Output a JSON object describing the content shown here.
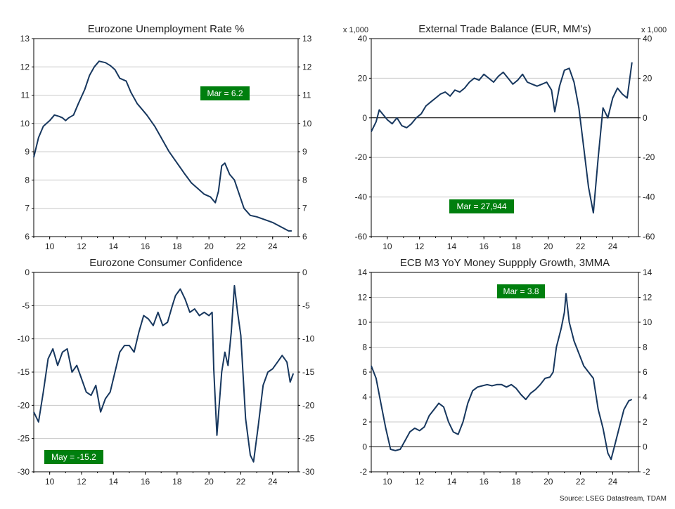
{
  "colors": {
    "line": "#17375e",
    "grid": "#c8c8c8",
    "zero_line": "#000000",
    "annotation_bg": "#007f0e",
    "annotation_text": "#ffffff"
  },
  "source": "Source: LSEG Datastream, TDAM",
  "chart_data": [
    {
      "type": "line",
      "title": "Eurozone Unemployment Rate %",
      "ylim": [
        6,
        13
      ],
      "yticks": [
        "6",
        "7",
        "8",
        "9",
        "10",
        "11",
        "12",
        "13"
      ],
      "xlim": [
        2009,
        2025.6
      ],
      "xticks": [
        "10",
        "12",
        "14",
        "16",
        "18",
        "20",
        "22",
        "24"
      ],
      "multiplier": "",
      "annotation": "Mar  = 6.2",
      "grid": true,
      "series": [
        {
          "x": [
            2009.0,
            2009.3,
            2009.6,
            2010.0,
            2010.3,
            2010.6,
            2010.8,
            2011.0,
            2011.2,
            2011.5,
            2011.8,
            2012.2,
            2012.5,
            2012.8,
            2013.1,
            2013.5,
            2013.8,
            2014.1,
            2014.4,
            2014.8,
            2015.1,
            2015.5,
            2015.8,
            2016.1,
            2016.6,
            2017.0,
            2017.5,
            2018.0,
            2018.5,
            2018.9,
            2019.3,
            2019.7,
            2020.1,
            2020.4,
            2020.6,
            2020.8,
            2021.0,
            2021.3,
            2021.6,
            2021.9,
            2022.2,
            2022.6,
            2023.0,
            2023.5,
            2024.0,
            2024.5,
            2025.0,
            2025.2
          ],
          "y": [
            8.8,
            9.5,
            9.9,
            10.1,
            10.3,
            10.25,
            10.2,
            10.1,
            10.2,
            10.3,
            10.7,
            11.2,
            11.7,
            12.0,
            12.2,
            12.15,
            12.05,
            11.9,
            11.6,
            11.5,
            11.1,
            10.7,
            10.5,
            10.3,
            9.9,
            9.5,
            9.0,
            8.6,
            8.2,
            7.9,
            7.7,
            7.5,
            7.4,
            7.2,
            7.6,
            8.5,
            8.6,
            8.2,
            8.0,
            7.5,
            7.0,
            6.75,
            6.7,
            6.6,
            6.5,
            6.35,
            6.2,
            6.2
          ]
        }
      ]
    },
    {
      "type": "line",
      "title": "External Trade Balance (EUR, MM's)",
      "ylim": [
        -60,
        40
      ],
      "yticks": [
        "-60",
        "-40",
        "-20",
        "0",
        "20",
        "40"
      ],
      "xlim": [
        2009,
        2025.6
      ],
      "xticks": [
        "10",
        "12",
        "14",
        "16",
        "18",
        "20",
        "22",
        "24"
      ],
      "multiplier": "x 1,000",
      "annotation": "Mar  = 27,944",
      "grid": true,
      "series": [
        {
          "x": [
            2009.0,
            2009.3,
            2009.5,
            2009.8,
            2010.0,
            2010.3,
            2010.6,
            2010.9,
            2011.2,
            2011.5,
            2011.8,
            2012.1,
            2012.4,
            2012.7,
            2013.0,
            2013.3,
            2013.6,
            2013.9,
            2014.2,
            2014.5,
            2014.8,
            2015.1,
            2015.4,
            2015.7,
            2016.0,
            2016.3,
            2016.6,
            2016.9,
            2017.2,
            2017.5,
            2017.8,
            2018.1,
            2018.4,
            2018.7,
            2019.0,
            2019.3,
            2019.6,
            2019.9,
            2020.2,
            2020.4,
            2020.7,
            2021.0,
            2021.3,
            2021.6,
            2021.9,
            2022.2,
            2022.5,
            2022.8,
            2023.1,
            2023.4,
            2023.7,
            2024.0,
            2024.3,
            2024.6,
            2024.9,
            2025.2
          ],
          "y": [
            -7,
            -2,
            4,
            1,
            -1,
            -3,
            0,
            -4,
            -5,
            -3,
            0,
            2,
            6,
            8,
            10,
            12,
            13,
            11,
            14,
            13,
            15,
            18,
            20,
            19,
            22,
            20,
            18,
            21,
            23,
            20,
            17,
            19,
            22,
            18,
            17,
            16,
            17,
            18,
            14,
            3,
            16,
            24,
            25,
            18,
            5,
            -15,
            -35,
            -48,
            -20,
            5,
            0,
            10,
            15,
            12,
            10,
            28
          ]
        }
      ]
    },
    {
      "type": "line",
      "title": "Eurozone Consumer Confidence",
      "ylim": [
        -30,
        0
      ],
      "yticks": [
        "-30",
        "-25",
        "-20",
        "-15",
        "-10",
        "-5",
        "0"
      ],
      "xlim": [
        2009,
        2025.6
      ],
      "xticks": [
        "10",
        "12",
        "14",
        "16",
        "18",
        "20",
        "22",
        "24"
      ],
      "multiplier": "",
      "annotation": "May  = -15.2",
      "grid": true,
      "series": [
        {
          "x": [
            2009.0,
            2009.3,
            2009.6,
            2009.9,
            2010.2,
            2010.5,
            2010.8,
            2011.1,
            2011.4,
            2011.7,
            2012.0,
            2012.3,
            2012.6,
            2012.9,
            2013.2,
            2013.5,
            2013.8,
            2014.1,
            2014.4,
            2014.7,
            2015.0,
            2015.3,
            2015.6,
            2015.9,
            2016.2,
            2016.5,
            2016.8,
            2017.1,
            2017.4,
            2017.7,
            2017.9,
            2018.2,
            2018.5,
            2018.8,
            2019.1,
            2019.4,
            2019.7,
            2020.0,
            2020.2,
            2020.3,
            2020.5,
            2020.8,
            2021.0,
            2021.2,
            2021.4,
            2021.6,
            2021.8,
            2022.0,
            2022.3,
            2022.6,
            2022.8,
            2023.1,
            2023.4,
            2023.7,
            2024.0,
            2024.3,
            2024.6,
            2024.9,
            2025.1,
            2025.3
          ],
          "y": [
            -21,
            -22.5,
            -18,
            -13,
            -11.5,
            -14,
            -12,
            -11.5,
            -15,
            -14,
            -16,
            -18,
            -18.5,
            -17,
            -21,
            -19,
            -18,
            -15,
            -12,
            -11,
            -11,
            -12,
            -9,
            -6.5,
            -7,
            -8,
            -6,
            -8,
            -7.5,
            -5,
            -3.5,
            -2.5,
            -4,
            -6,
            -5.5,
            -6.5,
            -6,
            -6.5,
            -6,
            -14.5,
            -24.5,
            -15,
            -12,
            -14,
            -9,
            -2,
            -6,
            -9.5,
            -22,
            -27.5,
            -28.5,
            -23,
            -17,
            -15,
            -14.5,
            -13.5,
            -12.5,
            -13.5,
            -16.5,
            -15.2
          ]
        }
      ]
    },
    {
      "type": "line",
      "title": "ECB M3 YoY Money Suppply Growth, 3MMA",
      "ylim": [
        -2,
        14
      ],
      "yticks": [
        "-2",
        "0",
        "2",
        "4",
        "6",
        "8",
        "10",
        "12",
        "14"
      ],
      "xlim": [
        2009,
        2025.6
      ],
      "xticks": [
        "10",
        "12",
        "14",
        "16",
        "18",
        "20",
        "22",
        "24"
      ],
      "multiplier": "",
      "annotation": "Mar  = 3.8",
      "grid": true,
      "series": [
        {
          "x": [
            2009.0,
            2009.3,
            2009.6,
            2009.9,
            2010.2,
            2010.5,
            2010.8,
            2011.1,
            2011.4,
            2011.7,
            2012.0,
            2012.3,
            2012.6,
            2012.9,
            2013.2,
            2013.5,
            2013.8,
            2014.1,
            2014.4,
            2014.7,
            2015.0,
            2015.3,
            2015.6,
            2015.9,
            2016.2,
            2016.5,
            2016.8,
            2017.1,
            2017.4,
            2017.7,
            2018.0,
            2018.3,
            2018.6,
            2018.9,
            2019.2,
            2019.5,
            2019.8,
            2020.1,
            2020.3,
            2020.5,
            2020.8,
            2021.0,
            2021.1,
            2021.3,
            2021.6,
            2021.9,
            2022.2,
            2022.5,
            2022.8,
            2023.1,
            2023.4,
            2023.7,
            2023.9,
            2024.1,
            2024.4,
            2024.7,
            2025.0,
            2025.2
          ],
          "y": [
            6.5,
            5.5,
            3.5,
            1.5,
            -0.2,
            -0.3,
            -0.2,
            0.5,
            1.2,
            1.5,
            1.3,
            1.6,
            2.5,
            3.0,
            3.5,
            3.2,
            2.0,
            1.2,
            1.0,
            2.0,
            3.5,
            4.5,
            4.8,
            4.9,
            5.0,
            4.9,
            5.0,
            5.0,
            4.8,
            5.0,
            4.7,
            4.2,
            3.8,
            4.3,
            4.6,
            5.0,
            5.5,
            5.6,
            6.0,
            8.0,
            9.5,
            10.8,
            12.3,
            10.0,
            8.5,
            7.5,
            6.5,
            6.0,
            5.5,
            3.0,
            1.5,
            -0.5,
            -1.0,
            0.0,
            1.5,
            3.0,
            3.7,
            3.8
          ]
        }
      ]
    }
  ]
}
